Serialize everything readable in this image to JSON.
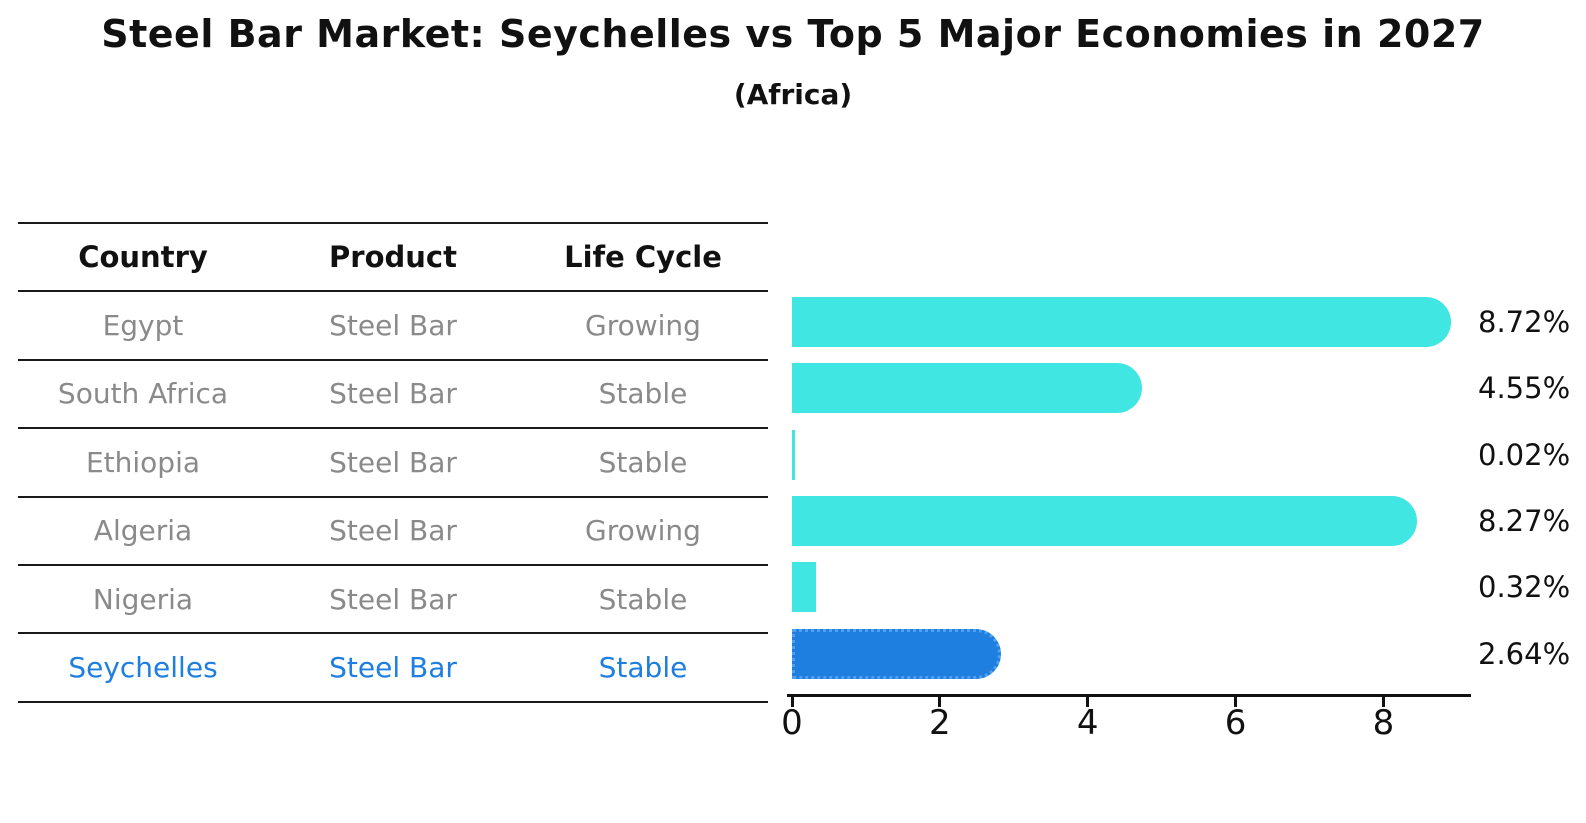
{
  "title": "Steel Bar Market: Seychelles vs Top 5 Major Economies in 2027",
  "subtitle": "(Africa)",
  "table": {
    "headers": [
      "Country",
      "Product",
      "Life Cycle"
    ],
    "rows": [
      {
        "country": "Egypt",
        "product": "Steel Bar",
        "life_cycle": "Growing",
        "highlight": false
      },
      {
        "country": "South Africa",
        "product": "Steel Bar",
        "life_cycle": "Stable",
        "highlight": false
      },
      {
        "country": "Ethiopia",
        "product": "Steel Bar",
        "life_cycle": "Stable",
        "highlight": false
      },
      {
        "country": "Algeria",
        "product": "Steel Bar",
        "life_cycle": "Growing",
        "highlight": false
      },
      {
        "country": "Nigeria",
        "product": "Steel Bar",
        "life_cycle": "Stable",
        "highlight": false
      },
      {
        "country": "Seychelles",
        "product": "Steel Bar",
        "life_cycle": "Stable",
        "highlight": true
      }
    ]
  },
  "chart_data": {
    "type": "bar",
    "orientation": "horizontal",
    "title": "Steel Bar Market: Seychelles vs Top 5 Major Economies in 2027",
    "subtitle": "(Africa)",
    "categories": [
      "Egypt",
      "South Africa",
      "Ethiopia",
      "Algeria",
      "Nigeria",
      "Seychelles"
    ],
    "values": [
      8.72,
      4.55,
      0.02,
      8.27,
      0.32,
      2.64
    ],
    "value_labels": [
      "8.72%",
      "4.55%",
      "0.02%",
      "8.27%",
      "0.32%",
      "2.64%"
    ],
    "xlabel": "",
    "ylabel": "",
    "xlim": [
      0,
      9.17
    ],
    "xticks": [
      0,
      2,
      4,
      6,
      8
    ],
    "grid": false,
    "legend": false,
    "bar_color": "#40E6E1",
    "highlight_color": "#1E7FE0",
    "highlight_border_color": "#4FA0EF",
    "highlight_border_style": "dotted",
    "highlight_index": 5
  },
  "colors": {
    "text": "#111111",
    "muted_text": "#8A8A8A",
    "accent_blue": "#1E7FE0",
    "bar_cyan": "#40E6E1",
    "line": "#1A1A1A",
    "background": "#FFFFFF"
  }
}
